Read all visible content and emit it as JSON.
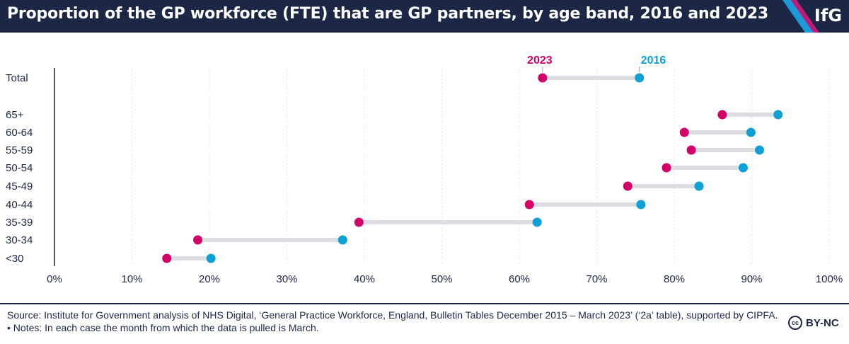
{
  "header": {
    "title": "Proportion of the GP workforce (FTE) that are GP partners, by age band, 2016 and 2023",
    "logo": "IfG"
  },
  "chart_data": {
    "type": "dumbbell",
    "title": "Proportion of the GP workforce (FTE) that are GP partners, by age band, 2016 and 2023",
    "categories": [
      "Total",
      "65+",
      "60-64",
      "55-59",
      "50-54",
      "45-49",
      "40-44",
      "35-39",
      "30-34",
      "<30"
    ],
    "series": [
      {
        "name": "2023",
        "color": "#d4006a",
        "values": [
          63.0,
          86.2,
          81.3,
          82.2,
          79.0,
          74.0,
          61.3,
          39.3,
          18.5,
          14.5
        ]
      },
      {
        "name": "2016",
        "color": "#0fa0d6",
        "values": [
          75.5,
          93.4,
          89.9,
          91.0,
          88.9,
          83.2,
          75.7,
          62.3,
          37.2,
          20.2
        ]
      }
    ],
    "connector_color": "#dcdde2",
    "xlim": [
      0,
      100
    ],
    "xticks": [
      "0%",
      "10%",
      "20%",
      "30%",
      "40%",
      "50%",
      "60%",
      "70%",
      "80%",
      "90%",
      "100%"
    ],
    "grid": true,
    "legend": "labels above Total row"
  },
  "footer": {
    "source": "Source: Institute for Government analysis of NHS Digital, ‘General Practice Workforce, England, Bulletin Tables December 2015 – March 2023’ (‘2a’ table), supported by CIPFA. • Notes: In each case the month from which the data is pulled is March.",
    "licence_icon": "cc-icon",
    "licence": "BY-NC"
  }
}
